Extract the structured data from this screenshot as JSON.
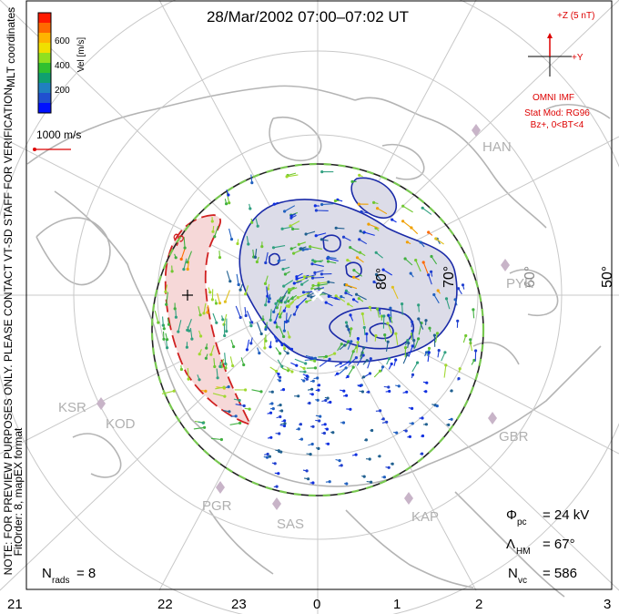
{
  "title": "28/Mar/2002 07:00–07:02 UT",
  "colorbar": {
    "label": "Vel [m/s]",
    "ticks": [
      "600",
      "400",
      "200"
    ],
    "colors": [
      "#ff1a00",
      "#ff6a00",
      "#ffb400",
      "#f0e000",
      "#90e020",
      "#30c030",
      "#10a070",
      "#2080c0",
      "#2050d0",
      "#0010ff"
    ]
  },
  "coord_label": "MLT coordinates",
  "scale_label": "1000 m/s",
  "side_note": "NOTE: FOR PREVIEW PURPOSES ONLY. PLEASE CONTACT VT-SD STAFF FOR VERIFICATION.",
  "side_note2": "FitOrder: 8, mapEX format",
  "imf": {
    "z_label": "+Z (5 nT)",
    "y_label": "+Y",
    "source": "OMNI IMF",
    "model_line1": "Stat Mod: RG96",
    "model_line2": "Bz+, 0<BT<4",
    "color": "#dd0000"
  },
  "lat_labels": [
    "80°",
    "70°",
    "60°",
    "50°"
  ],
  "contour_labels": [
    "-3",
    "3"
  ],
  "stations": [
    "HAN",
    "PYK",
    "KSR",
    "KOD",
    "GBR",
    "PGR",
    "SAS",
    "KAP"
  ],
  "stats": {
    "phi_symbol": "Φ",
    "phi_sub": "pc",
    "phi_value": "= 24 kV",
    "lambda_symbol": "Λ",
    "lambda_sub": "HM",
    "lambda_value": "= 67°",
    "nvc_symbol": "N",
    "nvc_sub": "vc",
    "nvc_value": "= 586",
    "nrads_symbol": "N",
    "nrads_sub": "rads",
    "nrads_value": "= 8"
  },
  "mlt_labels": [
    "21",
    "22",
    "23",
    "0",
    "1",
    "2",
    "3"
  ],
  "colors": {
    "positive_fill": "#dcdce8",
    "positive_line": "#1a2aa8",
    "negative_fill": "#f6d8d8",
    "negative_line": "#d02020",
    "hmb_dash1": "#78c850",
    "hmb_dash2": "#222222",
    "coast": "#b4b4b4",
    "station": "#c8b4c8"
  }
}
